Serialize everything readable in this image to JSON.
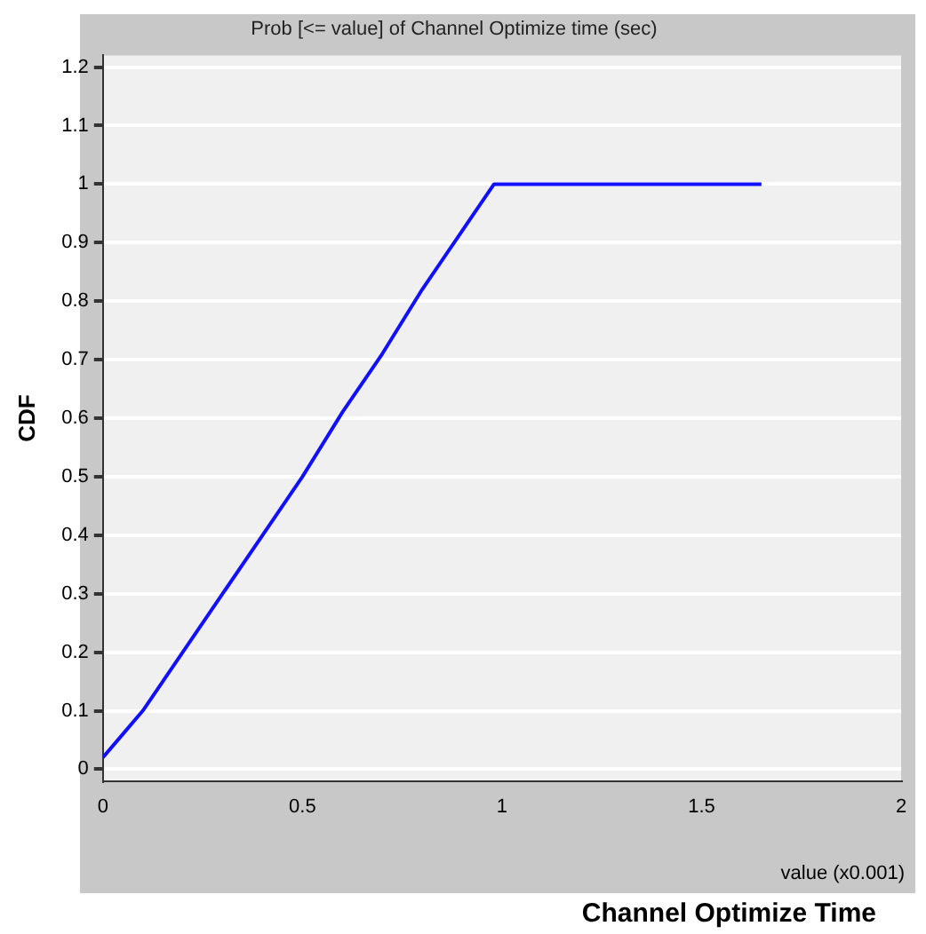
{
  "chart_data": {
    "type": "line",
    "title": "Prob [<= value] of Channel Optimize time (sec)",
    "xlabel": "Channel Optimize Time",
    "ylabel": "CDF",
    "annotations": [
      "value (x0.001)"
    ],
    "x": [
      0,
      0.05,
      0.1,
      0.15,
      0.2,
      0.3,
      0.4,
      0.5,
      0.6,
      0.7,
      0.8,
      0.9,
      0.98,
      1.65
    ],
    "series": [
      {
        "color": "#1010ff",
        "values": [
          0.02,
          0.06,
          0.1,
          0.15,
          0.2,
          0.3,
          0.4,
          0.5,
          0.61,
          0.71,
          0.82,
          0.92,
          1,
          1
        ]
      }
    ],
    "xlim": [
      0,
      2
    ],
    "xticks": [
      0,
      0.5,
      1,
      1.5,
      2
    ],
    "ylim": [
      -0.02,
      1.22
    ],
    "yticks": [
      0,
      0.1,
      0.2,
      0.3,
      0.4,
      0.5,
      0.6,
      0.7,
      0.8,
      0.9,
      1,
      1.1,
      1.2
    ],
    "grid": "y",
    "legend": false,
    "marker": "none",
    "line_style": "solid"
  }
}
